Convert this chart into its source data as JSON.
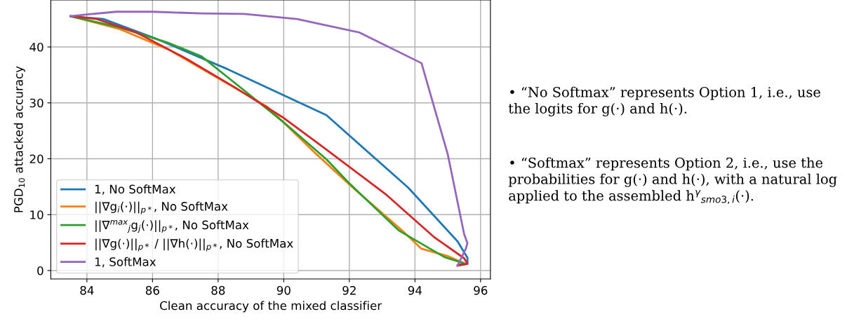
{
  "chart_data": {
    "type": "line",
    "xlabel": "Clean accuracy of the mixed classifier",
    "ylabel": "PGD$_{10}$ attacked accuracy",
    "xlim": [
      82.9,
      96.3
    ],
    "ylim": [
      -1.5,
      48.4
    ],
    "xticks": [
      84,
      86,
      88,
      90,
      92,
      94,
      96
    ],
    "yticks": [
      0,
      10,
      20,
      30,
      40
    ],
    "grid": true,
    "legend": "bottom left",
    "series": [
      {
        "name": "1, No SoftMax",
        "color": "#1f77b4",
        "x": [
          83.5,
          84.5,
          86.1,
          88.3,
          91.3,
          93.8,
          95.3,
          95.6,
          95.6,
          95.4
        ],
        "values": [
          45.5,
          45.0,
          41.5,
          36.0,
          27.8,
          14.8,
          5.2,
          2.3,
          1.2,
          1.0
        ]
      },
      {
        "name": "||∇g$_{i}$(·)||$_{p*}$, No SoftMax",
        "color": "#ff7f0e",
        "x": [
          83.5,
          85.0,
          86.5,
          88.0,
          89.5,
          91.0,
          92.0,
          93.6,
          94.2,
          95.0,
          95.5,
          95.3
        ],
        "values": [
          45.5,
          43.2,
          39.5,
          34.4,
          29.3,
          20.8,
          15.4,
          7.2,
          3.9,
          2.6,
          1.3,
          0.9
        ]
      },
      {
        "name": "||∇$^{max}$$_{j}$g$_{j}$(·)||$_{p*}$, No SoftMax",
        "color": "#2ca02c",
        "x": [
          83.5,
          85.0,
          86.5,
          87.5,
          88.8,
          90.0,
          91.3,
          92.0,
          93.5,
          94.9,
          95.5,
          95.3
        ],
        "values": [
          45.5,
          43.5,
          40.7,
          38.3,
          32.2,
          26.5,
          19.9,
          15.6,
          7.2,
          2.4,
          1.3,
          0.9
        ]
      },
      {
        "name": "||∇g(·)||$_{p*}$ / ||∇h(·)||$_{p*}$, No SoftMax",
        "color": "#d62728",
        "x": [
          83.5,
          84.3,
          85.5,
          87.0,
          88.5,
          90.0,
          91.2,
          93.1,
          94.6,
          95.5,
          95.6,
          95.3
        ],
        "values": [
          45.5,
          45.0,
          42.6,
          38.0,
          32.8,
          27.3,
          22.1,
          13.7,
          5.9,
          2.2,
          1.2,
          0.9
        ]
      },
      {
        "name": "1, SoftMax",
        "color": "#9467bd",
        "x": [
          83.5,
          84.0,
          84.9,
          86.0,
          87.5,
          88.8,
          90.4,
          92.3,
          94.2,
          95.0,
          95.5,
          95.6,
          95.55,
          95.3
        ],
        "values": [
          45.5,
          45.8,
          46.3,
          46.3,
          46.0,
          45.9,
          45.0,
          42.6,
          37.1,
          20.8,
          6.5,
          4.9,
          3.9,
          0.9
        ]
      }
    ],
    "annotations": [
      "• “No Softmax” represents Option 1, i.e., use the logits for g(·) and h(·).",
      "• “Softmax” represents Option 2, i.e., use the probabilities for g(·) and h(·), with a natural log applied to the assembled h$^{γ}$$_{smo3,i}$(·)."
    ]
  }
}
